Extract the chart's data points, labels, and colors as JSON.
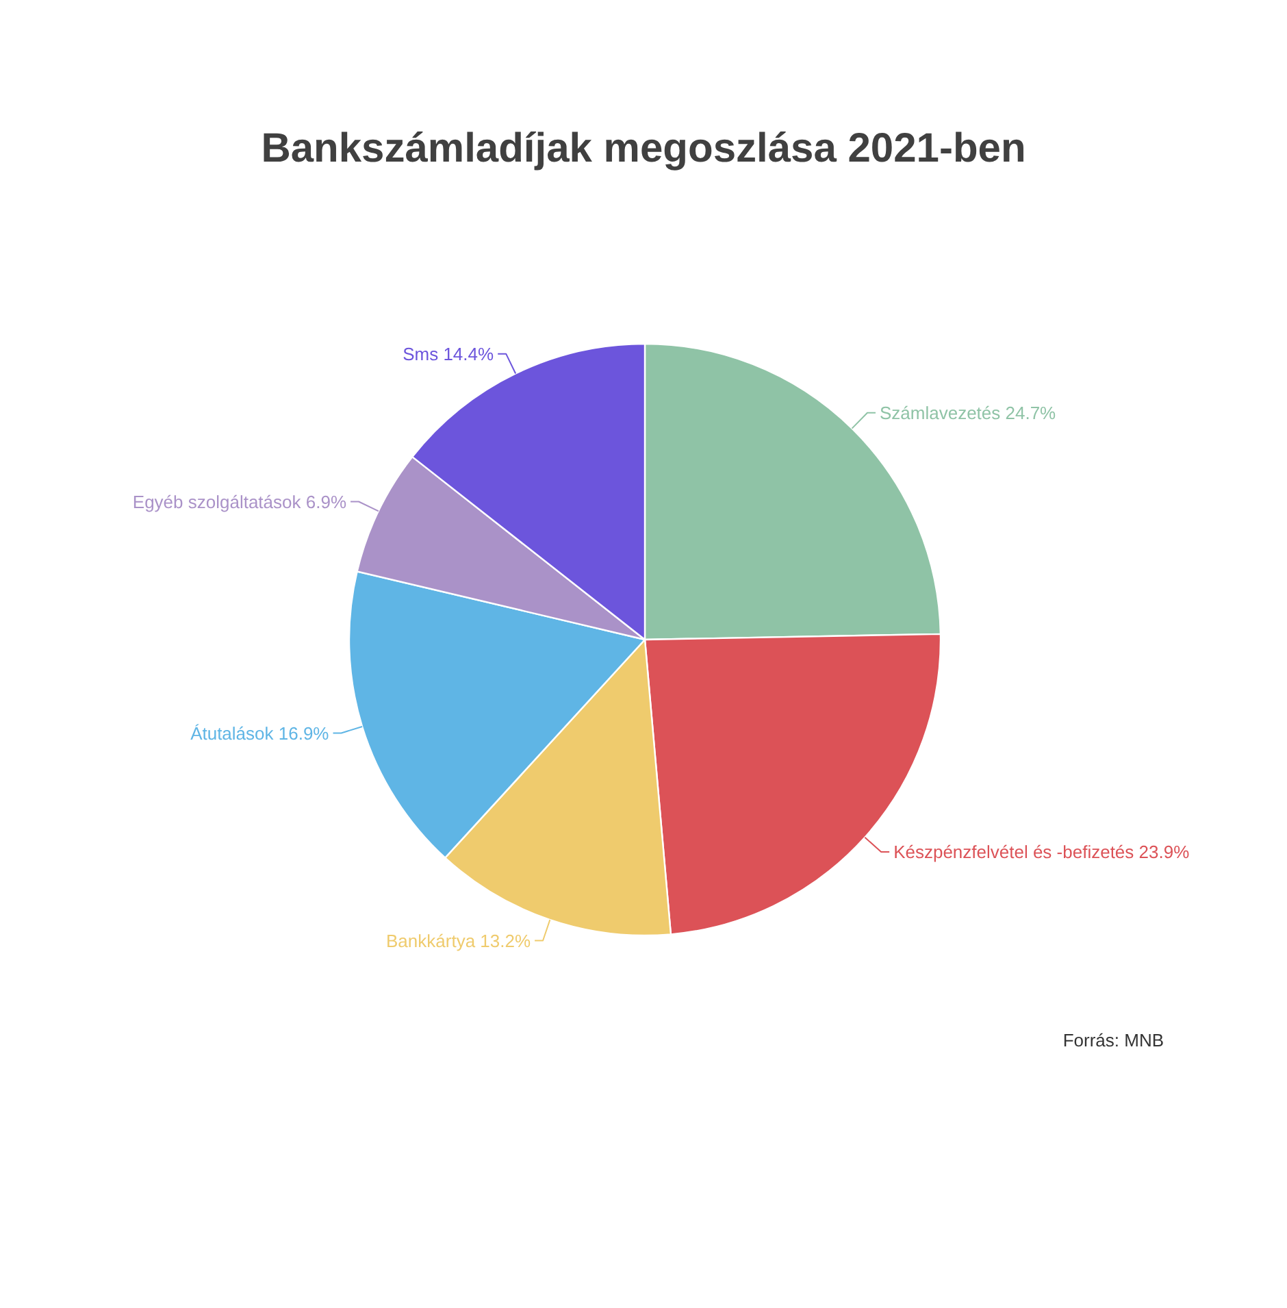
{
  "chart_data": {
    "type": "pie",
    "title": "Bankszámladíjak megoszlása 2021-ben",
    "categories": [
      "Számlavezetés",
      "Készpénzfelvétel és -befizetés",
      "Bankkártya",
      "Átutalások",
      "Egyéb szolgáltatások",
      "Sms"
    ],
    "values": [
      24.7,
      23.9,
      13.2,
      16.9,
      6.9,
      14.4
    ],
    "colors": [
      "#8fc3a6",
      "#dc5257",
      "#efcb6d",
      "#5fb5e5",
      "#aa92c8",
      "#6c55dc"
    ],
    "value_labels": [
      "24.7%",
      "23.9%",
      "13.2%",
      "16.9%",
      "6.9%",
      "14.4%"
    ],
    "annotations": [
      "Forrás: MNB"
    ]
  }
}
